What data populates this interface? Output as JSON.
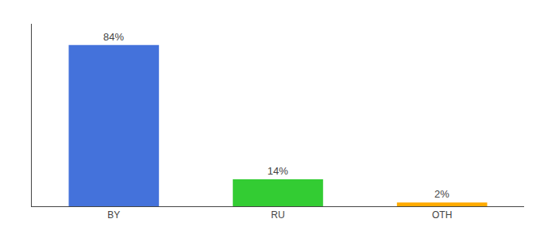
{
  "chart_data": {
    "type": "bar",
    "categories": [
      "BY",
      "RU",
      "OTH"
    ],
    "values": [
      84,
      14,
      2
    ],
    "colors": [
      "#4472db",
      "#33cc33",
      "#ffaa00"
    ],
    "data_labels": true,
    "value_labels": [
      "84%",
      "14%",
      "2%"
    ],
    "ylim": [
      0,
      95
    ],
    "tick_labels": "x",
    "grid": false
  }
}
